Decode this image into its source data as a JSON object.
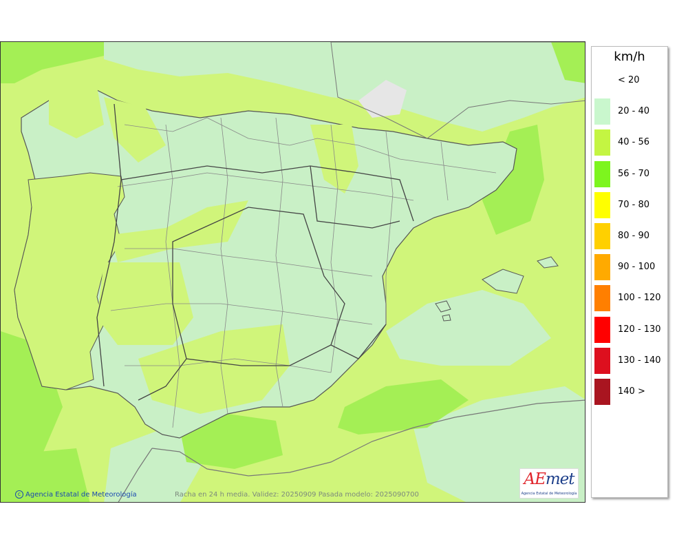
{
  "legend": {
    "unit": "km/h",
    "items": [
      {
        "label": "< 20",
        "color": ""
      },
      {
        "label": "20 - 40",
        "color": "#c9f7cd"
      },
      {
        "label": "40 - 56",
        "color": "#c4f542"
      },
      {
        "label": "56 - 70",
        "color": "#7df51e"
      },
      {
        "label": "70 - 80",
        "color": "#ffff00"
      },
      {
        "label": "80 - 90",
        "color": "#ffd000"
      },
      {
        "label": "90 - 100",
        "color": "#ffaa00"
      },
      {
        "label": "100 - 120",
        "color": "#ff7f00"
      },
      {
        "label": "120 - 130",
        "color": "#ff0000"
      },
      {
        "label": "130 - 140",
        "color": "#dd0f1e"
      },
      {
        "label": "140 >",
        "color": "#a91520"
      }
    ]
  },
  "footer": {
    "copyright": "Agencia Estatal de Meteorología",
    "caption": "Racha en 24 h media. Validez: 20250909 Pasada modelo: 2025090700"
  },
  "logo": {
    "word_red": "AE",
    "word_blue": "met",
    "subtitle": "Agencia Estatal de Meteorología"
  },
  "map_colors": {
    "light_green": "#c9f0c6",
    "yellow_green": "#d0f57a",
    "bright_green": "#a4ef55",
    "no_data": "#e6e6e6",
    "border": "#555555"
  }
}
